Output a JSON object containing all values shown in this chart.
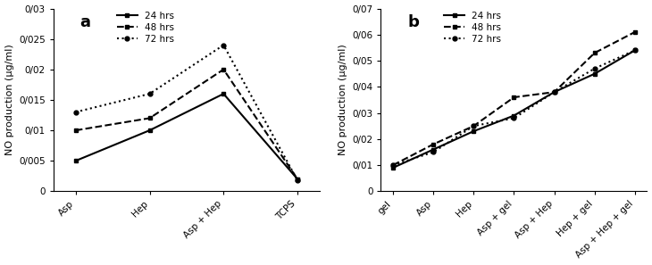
{
  "panel_a": {
    "categories": [
      "Asp",
      "Hep",
      "Asp + Hep",
      "TCPS"
    ],
    "series_order": [
      "24 hrs",
      "48 hrs",
      "72 hrs"
    ],
    "series": {
      "24 hrs": [
        0.005,
        0.01,
        0.016,
        0.002
      ],
      "48 hrs": [
        0.01,
        0.012,
        0.02,
        0.002
      ],
      "72 hrs": [
        0.013,
        0.016,
        0.024,
        0.0018
      ]
    },
    "ylabel": "NO production (μg/ml)",
    "ylim": [
      0,
      0.03
    ],
    "yticks": [
      0,
      0.005,
      0.01,
      0.015,
      0.02,
      0.025,
      0.03
    ],
    "ytick_labels": [
      "0",
      "0/005",
      "0/01",
      "0/015",
      "0/02",
      "0/025",
      "0/03"
    ],
    "label": "a"
  },
  "panel_b": {
    "categories": [
      "gel",
      "Asp",
      "Hep",
      "Asp + gel",
      "Asp + Hep",
      "Hep + gel",
      "Asp + Hep + gel"
    ],
    "series_order": [
      "24 hrs",
      "48 hrs",
      "72 hrs"
    ],
    "series": {
      "24 hrs": [
        0.009,
        0.016,
        0.023,
        0.029,
        0.038,
        0.045,
        0.054
      ],
      "48 hrs": [
        0.01,
        0.018,
        0.025,
        0.036,
        0.038,
        0.053,
        0.061
      ],
      "72 hrs": [
        0.01,
        0.015,
        0.025,
        0.028,
        0.038,
        0.047,
        0.054
      ]
    },
    "ylabel": "NO production (μg/ml)",
    "ylim": [
      0,
      0.07
    ],
    "yticks": [
      0,
      0.01,
      0.02,
      0.03,
      0.04,
      0.05,
      0.06,
      0.07
    ],
    "ytick_labels": [
      "0",
      "0/01",
      "0/02",
      "0/03",
      "0/04",
      "0/05",
      "0/06",
      "0/07"
    ],
    "label": "b"
  },
  "line_styles": {
    "24 hrs": {
      "linestyle": "-",
      "linewidth": 1.5,
      "marker": "s",
      "markersize": 3.5
    },
    "48 hrs": {
      "linestyle": "--",
      "linewidth": 1.5,
      "marker": "s",
      "markersize": 3.5
    },
    "72 hrs": {
      "linestyle": ":",
      "linewidth": 1.5,
      "marker": "o",
      "markersize": 3.5
    }
  },
  "color": "#000000",
  "background_color": "#ffffff",
  "ylabel_fontsize": 8,
  "tick_fontsize": 7.5,
  "legend_fontsize": 7.5,
  "panel_label_fontsize": 13
}
